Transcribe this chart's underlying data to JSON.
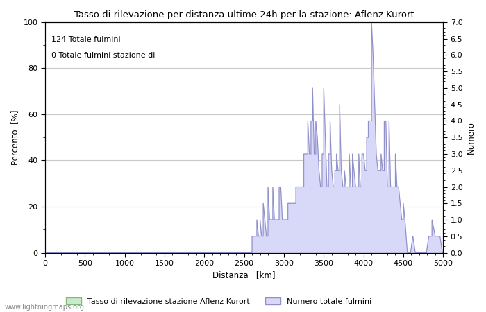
{
  "title": "Tasso di rilevazione per distanza ultime 24h per la stazione: Aflenz Kurort",
  "xlabel": "Distanza   [km]",
  "ylabel_left": "Percento  [%]",
  "ylabel_right": "Numero",
  "annotation_lines": [
    "124 Totale fulmini",
    "0 Totale fulmini stazione di"
  ],
  "xlim": [
    0,
    5000
  ],
  "ylim_left": [
    0,
    100
  ],
  "ylim_right": [
    0,
    7.0
  ],
  "xticks": [
    0,
    500,
    1000,
    1500,
    2000,
    2500,
    3000,
    3500,
    4000,
    4500,
    5000
  ],
  "yticks_left": [
    0,
    20,
    40,
    60,
    80,
    100
  ],
  "yticks_right": [
    0.0,
    0.5,
    1.0,
    1.5,
    2.0,
    2.5,
    3.0,
    3.5,
    4.0,
    4.5,
    5.0,
    5.5,
    6.0,
    6.5,
    7.0
  ],
  "background_color": "#ffffff",
  "plot_bg_color": "#ffffff",
  "grid_color": "#c8c8c8",
  "fill_color": "#d8d8f8",
  "line_color": "#9090c8",
  "green_fill": "#c8ecc8",
  "green_edge": "#80b880",
  "legend_label_fill": "Tasso di rilevazione stazione Aflenz Kurort",
  "legend_label_line": "Numero totale fulmini",
  "watermark": "www.lightningmaps.org",
  "bins": [
    [
      2600,
      0.5
    ],
    [
      2620,
      0.5
    ],
    [
      2640,
      0.5
    ],
    [
      2660,
      1.0
    ],
    [
      2680,
      0.5
    ],
    [
      2700,
      1.0
    ],
    [
      2720,
      0.5
    ],
    [
      2740,
      1.5
    ],
    [
      2760,
      1.0
    ],
    [
      2780,
      0.5
    ],
    [
      2800,
      2.0
    ],
    [
      2820,
      1.0
    ],
    [
      2840,
      1.0
    ],
    [
      2860,
      2.0
    ],
    [
      2880,
      1.0
    ],
    [
      2900,
      1.0
    ],
    [
      2920,
      1.0
    ],
    [
      2940,
      2.0
    ],
    [
      2960,
      2.0
    ],
    [
      2980,
      1.0
    ],
    [
      3000,
      1.0
    ],
    [
      3050,
      1.5
    ],
    [
      3100,
      1.5
    ],
    [
      3150,
      2.0
    ],
    [
      3200,
      2.0
    ],
    [
      3250,
      3.0
    ],
    [
      3280,
      3.0
    ],
    [
      3300,
      4.0
    ],
    [
      3320,
      3.0
    ],
    [
      3340,
      4.0
    ],
    [
      3360,
      5.0
    ],
    [
      3380,
      3.0
    ],
    [
      3400,
      4.0
    ],
    [
      3420,
      3.5
    ],
    [
      3440,
      2.5
    ],
    [
      3460,
      2.0
    ],
    [
      3480,
      3.0
    ],
    [
      3500,
      5.0
    ],
    [
      3520,
      3.5
    ],
    [
      3540,
      2.0
    ],
    [
      3560,
      3.0
    ],
    [
      3580,
      4.0
    ],
    [
      3600,
      2.5
    ],
    [
      3620,
      2.0
    ],
    [
      3640,
      2.5
    ],
    [
      3660,
      3.0
    ],
    [
      3680,
      2.5
    ],
    [
      3700,
      4.5
    ],
    [
      3720,
      2.5
    ],
    [
      3740,
      2.0
    ],
    [
      3760,
      2.5
    ],
    [
      3780,
      2.0
    ],
    [
      3800,
      2.0
    ],
    [
      3820,
      3.0
    ],
    [
      3840,
      2.0
    ],
    [
      3860,
      3.0
    ],
    [
      3880,
      2.5
    ],
    [
      3900,
      2.0
    ],
    [
      3920,
      2.0
    ],
    [
      3940,
      3.0
    ],
    [
      3960,
      2.0
    ],
    [
      3980,
      3.0
    ],
    [
      4000,
      3.0
    ],
    [
      4020,
      2.5
    ],
    [
      4040,
      3.5
    ],
    [
      4060,
      4.0
    ],
    [
      4080,
      4.0
    ],
    [
      4100,
      7.0
    ],
    [
      4120,
      6.0
    ],
    [
      4140,
      4.5
    ],
    [
      4160,
      3.0
    ],
    [
      4180,
      2.5
    ],
    [
      4200,
      2.5
    ],
    [
      4220,
      3.0
    ],
    [
      4240,
      2.5
    ],
    [
      4260,
      4.0
    ],
    [
      4280,
      4.0
    ],
    [
      4300,
      2.0
    ],
    [
      4320,
      4.0
    ],
    [
      4340,
      2.0
    ],
    [
      4360,
      2.0
    ],
    [
      4380,
      2.0
    ],
    [
      4400,
      3.0
    ],
    [
      4420,
      2.0
    ],
    [
      4440,
      2.0
    ],
    [
      4460,
      1.5
    ],
    [
      4480,
      1.0
    ],
    [
      4500,
      1.5
    ],
    [
      4520,
      1.0
    ],
    [
      4620,
      0.5
    ],
    [
      4820,
      0.5
    ],
    [
      4860,
      1.0
    ],
    [
      4900,
      0.5
    ],
    [
      4960,
      0.5
    ]
  ]
}
